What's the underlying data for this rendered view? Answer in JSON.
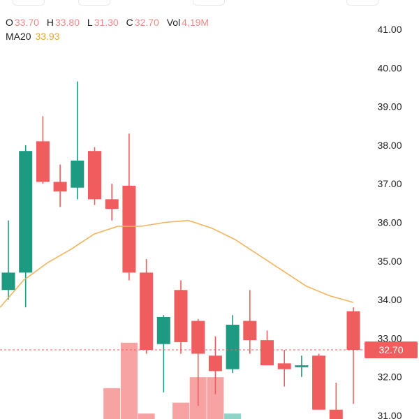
{
  "legend": {
    "open_label": "O",
    "open_value": "33.70",
    "high_label": "H",
    "high_value": "33.80",
    "low_label": "L",
    "low_value": "31.30",
    "close_label": "C",
    "close_value": "32.70",
    "vol_label": "Vol",
    "vol_value": "4,19M",
    "ma_label": "MA20",
    "ma_value": "33.93"
  },
  "current_price_label": "32.70",
  "colors": {
    "up": "#1f9a82",
    "down": "#f05d5e",
    "up_volume": "#8fd3c6",
    "down_volume": "#f7a3a3",
    "ma_line": "#f2b45e",
    "price_line": "#f05d5e",
    "axis_text": "#222222"
  },
  "chart_data": {
    "type": "candlestick",
    "y_axis": {
      "position": "right",
      "min": 31.0,
      "max": 41.0,
      "ticks": [
        "31.00",
        "32.00",
        "33.00",
        "34.00",
        "35.00",
        "36.00",
        "37.00",
        "38.00",
        "39.00",
        "40.00",
        "41.00"
      ]
    },
    "grid": false,
    "candles": [
      {
        "o": 34.25,
        "h": 36.05,
        "l": 34.0,
        "c": 34.7
      },
      {
        "o": 34.7,
        "h": 38.0,
        "l": 33.8,
        "c": 37.85
      },
      {
        "o": 38.1,
        "h": 38.75,
        "l": 37.0,
        "c": 37.05
      },
      {
        "o": 37.05,
        "h": 37.5,
        "l": 36.4,
        "c": 36.8
      },
      {
        "o": 36.9,
        "h": 39.65,
        "l": 36.6,
        "c": 37.6
      },
      {
        "o": 37.85,
        "h": 37.95,
        "l": 36.45,
        "c": 36.6
      },
      {
        "o": 36.6,
        "h": 37.0,
        "l": 36.05,
        "c": 36.35
      },
      {
        "o": 36.95,
        "h": 38.3,
        "l": 34.5,
        "c": 34.7
      },
      {
        "o": 34.7,
        "h": 35.05,
        "l": 32.6,
        "c": 32.7
      },
      {
        "o": 32.85,
        "h": 33.6,
        "l": 31.6,
        "c": 33.55
      },
      {
        "o": 34.25,
        "h": 34.5,
        "l": 32.6,
        "c": 32.9
      },
      {
        "o": 33.45,
        "h": 33.5,
        "l": 31.25,
        "c": 32.6
      },
      {
        "o": 32.55,
        "h": 33.05,
        "l": 31.55,
        "c": 32.15
      },
      {
        "o": 32.2,
        "h": 33.6,
        "l": 32.1,
        "c": 33.35
      },
      {
        "o": 33.45,
        "h": 34.25,
        "l": 32.6,
        "c": 32.95
      },
      {
        "o": 32.95,
        "h": 33.2,
        "l": 32.35,
        "c": 32.3
      },
      {
        "o": 32.35,
        "h": 32.7,
        "l": 31.75,
        "c": 32.2
      },
      {
        "o": 32.25,
        "h": 32.55,
        "l": 32.0,
        "c": 32.3
      },
      {
        "o": 32.55,
        "h": 32.6,
        "l": 31.2,
        "c": 31.15
      },
      {
        "o": 31.15,
        "h": 31.85,
        "l": 30.9,
        "c": 30.9
      },
      {
        "o": 33.7,
        "h": 33.8,
        "l": 31.3,
        "c": 32.7
      }
    ],
    "volume": [
      null,
      null,
      null,
      null,
      null,
      null,
      0.17,
      0.42,
      0.03,
      null,
      0.09,
      0.23,
      0.23,
      0.03,
      null,
      null,
      null,
      null,
      null,
      null,
      null
    ],
    "ma20": [
      33.8,
      34.5,
      34.95,
      35.3,
      35.7,
      35.9,
      35.9,
      36.0,
      36.05,
      35.85,
      35.55,
      35.15,
      34.75,
      34.35,
      34.1,
      33.93
    ],
    "current_price": 32.7
  }
}
